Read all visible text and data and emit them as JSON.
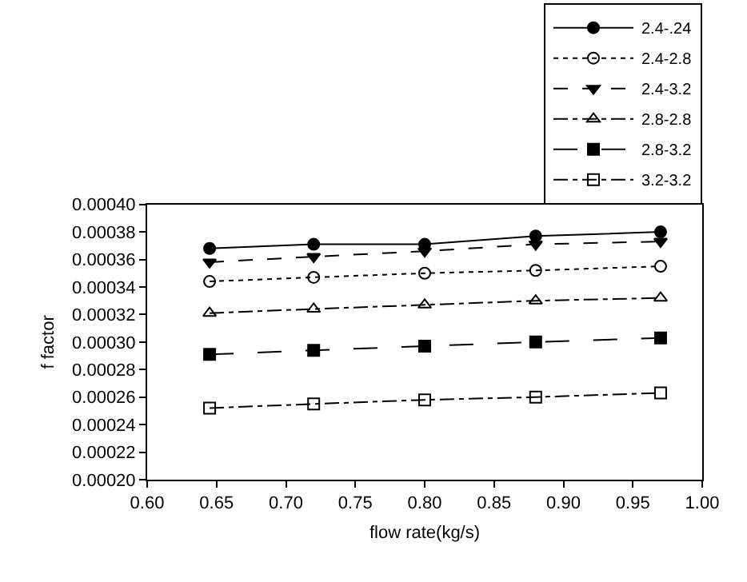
{
  "chart_data": {
    "type": "line",
    "xlabel": "flow rate(kg/s)",
    "ylabel": "f factor",
    "x": [
      0.645,
      0.72,
      0.8,
      0.88,
      0.97
    ],
    "series": [
      {
        "name": "2.4-.24",
        "color": "#000000",
        "marker": "circle",
        "line_style": "solid",
        "values": [
          0.000368,
          0.000371,
          0.000371,
          0.000377,
          0.00038
        ]
      },
      {
        "name": "2.4-2.8",
        "color": "#000000",
        "marker": "circle-open",
        "line_style": "dotted",
        "values": [
          0.000344,
          0.000347,
          0.00035,
          0.000352,
          0.000355
        ]
      },
      {
        "name": "2.4-3.2",
        "color": "#000000",
        "marker": "triangle-down",
        "line_style": "dashed",
        "values": [
          0.000358,
          0.000362,
          0.000366,
          0.000371,
          0.000373
        ]
      },
      {
        "name": "2.8-2.8",
        "color": "#000000",
        "marker": "triangle-up-open",
        "line_style": "dashdot",
        "values": [
          0.000321,
          0.000324,
          0.000327,
          0.00033,
          0.000332
        ]
      },
      {
        "name": "2.8-3.2",
        "color": "#000000",
        "marker": "square",
        "line_style": "longdash",
        "values": [
          0.000291,
          0.000294,
          0.000297,
          0.0003,
          0.000303
        ]
      },
      {
        "name": "3.2-3.2",
        "color": "#000000",
        "marker": "square-open",
        "line_style": "dashdot",
        "values": [
          0.000252,
          0.000255,
          0.000258,
          0.00026,
          0.000263
        ]
      }
    ],
    "xlim": [
      0.6,
      1.0
    ],
    "xticks": [
      {
        "value": 0.6,
        "label": "0.60"
      },
      {
        "value": 0.65,
        "label": "0.65"
      },
      {
        "value": 0.7,
        "label": "0.70"
      },
      {
        "value": 0.75,
        "label": "0.75"
      },
      {
        "value": 0.8,
        "label": "0.80"
      },
      {
        "value": 0.85,
        "label": "0.85"
      },
      {
        "value": 0.9,
        "label": "0.90"
      },
      {
        "value": 0.95,
        "label": "0.95"
      },
      {
        "value": 1.0,
        "label": "1.00"
      }
    ],
    "ylim": [
      0.0002,
      0.0004
    ],
    "yticks": [
      {
        "value": 0.0002,
        "label": "0.00020"
      },
      {
        "value": 0.00022,
        "label": "0.00022"
      },
      {
        "value": 0.00024,
        "label": "0.00024"
      },
      {
        "value": 0.00026,
        "label": "0.00026"
      },
      {
        "value": 0.00028,
        "label": "0.00028"
      },
      {
        "value": 0.0003,
        "label": "0.00030"
      },
      {
        "value": 0.00032,
        "label": "0.00032"
      },
      {
        "value": 0.00034,
        "label": "0.00034"
      },
      {
        "value": 0.00036,
        "label": "0.00036"
      },
      {
        "value": 0.00038,
        "label": "0.00038"
      },
      {
        "value": 0.0004,
        "label": "0.00040"
      }
    ],
    "grid": false,
    "legend": "top right"
  }
}
